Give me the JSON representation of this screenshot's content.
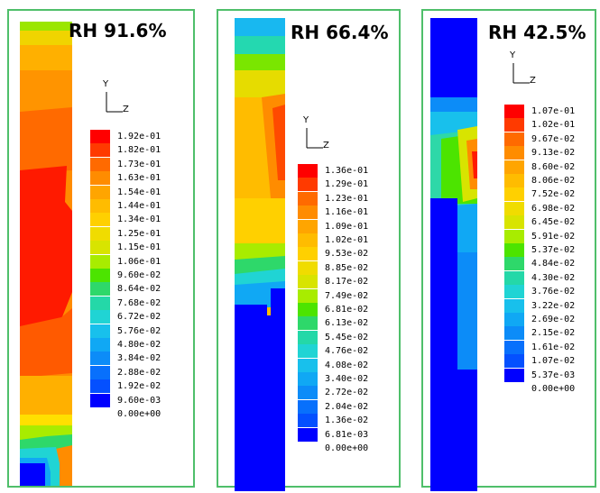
{
  "panels": [
    {
      "title": "RH  91.6%",
      "labels": [
        "1.92e-01",
        "1.82e-01",
        "1.73e-01",
        "1.63e-01",
        "1.54e-01",
        "1.44e-01",
        "1.34e-01",
        "1.25e-01",
        "1.15e-01",
        "1.06e-01",
        "9.60e-02",
        "8.64e-02",
        "7.68e-02",
        "6.72e-02",
        "5.76e-02",
        "4.80e-02",
        "3.84e-02",
        "2.88e-02",
        "1.92e-02",
        "9.60e-03",
        "0.00e+00"
      ]
    },
    {
      "title": "RH 66.4%",
      "labels": [
        "1.36e-01",
        "1.29e-01",
        "1.23e-01",
        "1.16e-01",
        "1.09e-01",
        "1.02e-01",
        "9.53e-02",
        "8.85e-02",
        "8.17e-02",
        "7.49e-02",
        "6.81e-02",
        "6.13e-02",
        "5.45e-02",
        "4.76e-02",
        "4.08e-02",
        "3.40e-02",
        "2.72e-02",
        "2.04e-02",
        "1.36e-02",
        "6.81e-03",
        "0.00e+00"
      ]
    },
    {
      "title": "RH 42.5%",
      "labels": [
        "1.07e-01",
        "1.02e-01",
        "9.67e-02",
        "9.13e-02",
        "8.60e-02",
        "8.06e-02",
        "7.52e-02",
        "6.98e-02",
        "6.45e-02",
        "5.91e-02",
        "5.37e-02",
        "4.84e-02",
        "4.30e-02",
        "3.76e-02",
        "3.22e-02",
        "2.69e-02",
        "2.15e-02",
        "1.61e-02",
        "1.07e-02",
        "5.37e-03",
        "0.00e+00"
      ]
    }
  ],
  "axis": {
    "y": "Y",
    "z": "Z"
  },
  "colors": [
    "#ff0000",
    "#ff3a00",
    "#ff6a00",
    "#ff8c00",
    "#ffa500",
    "#ffbc00",
    "#ffd000",
    "#f0dc00",
    "#d8e400",
    "#a8ec00",
    "#4ce400",
    "#2ed86a",
    "#24d8a8",
    "#20d4d4",
    "#18c0ec",
    "#10a8f4",
    "#0c8cf8",
    "#0870fc",
    "#0450ff",
    "#0000ff"
  ]
}
